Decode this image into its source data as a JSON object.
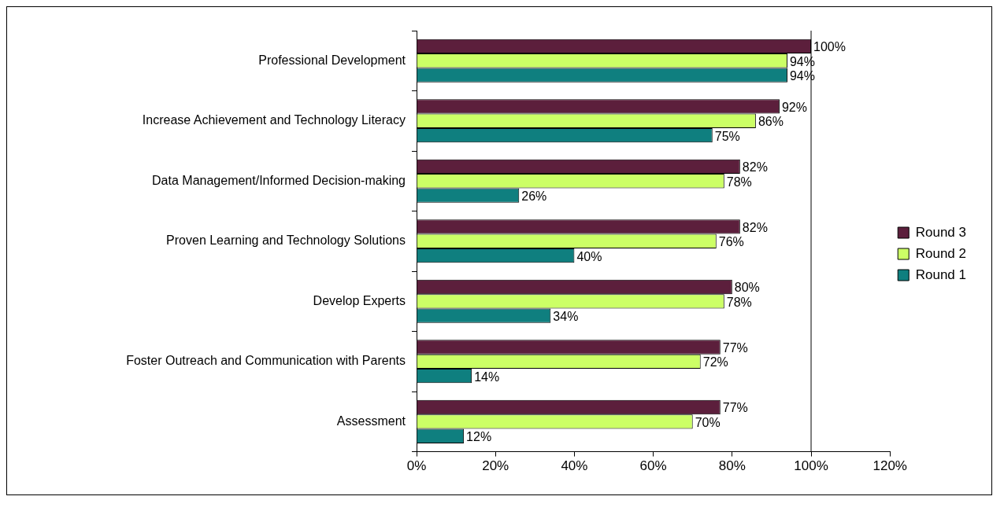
{
  "chart_data": {
    "type": "bar",
    "orientation": "horizontal",
    "categories": [
      "Professional Development",
      "Increase Achievement and Technology Literacy",
      "Data Management/Informed Decision-making",
      "Proven Learning and Technology Solutions",
      "Develop Experts",
      "Foster Outreach and Communication with Parents",
      "Assessment"
    ],
    "series": [
      {
        "name": "Round 3",
        "color": "#5c1f3c",
        "values": [
          100,
          92,
          82,
          82,
          80,
          77,
          77
        ],
        "value_labels": [
          "100%",
          "92%",
          "82%",
          "82%",
          "80%",
          "77%",
          "77%"
        ]
      },
      {
        "name": "Round 2",
        "color": "#ccff66",
        "values": [
          94,
          86,
          78,
          76,
          78,
          72,
          70
        ],
        "value_labels": [
          "94%",
          "86%",
          "78%",
          "76%",
          "78%",
          "72%",
          "70%"
        ]
      },
      {
        "name": "Round 1",
        "color": "#0f7f7f",
        "values": [
          94,
          75,
          26,
          40,
          34,
          14,
          12
        ],
        "value_labels": [
          "94%",
          "75%",
          "26%",
          "40%",
          "34%",
          "14%",
          "12%"
        ]
      }
    ],
    "xlim": [
      0,
      120
    ],
    "xticks": [
      {
        "value": 0,
        "label": "0%"
      },
      {
        "value": 20,
        "label": "20%"
      },
      {
        "value": 40,
        "label": "40%"
      },
      {
        "value": 60,
        "label": "60%"
      },
      {
        "value": 80,
        "label": "80%"
      },
      {
        "value": 100,
        "label": "100%"
      },
      {
        "value": 120,
        "label": "120%"
      }
    ],
    "ref_lines": [
      {
        "axis": "x",
        "value": 100,
        "color": "#000000"
      }
    ],
    "grid": false,
    "legend": "right"
  }
}
